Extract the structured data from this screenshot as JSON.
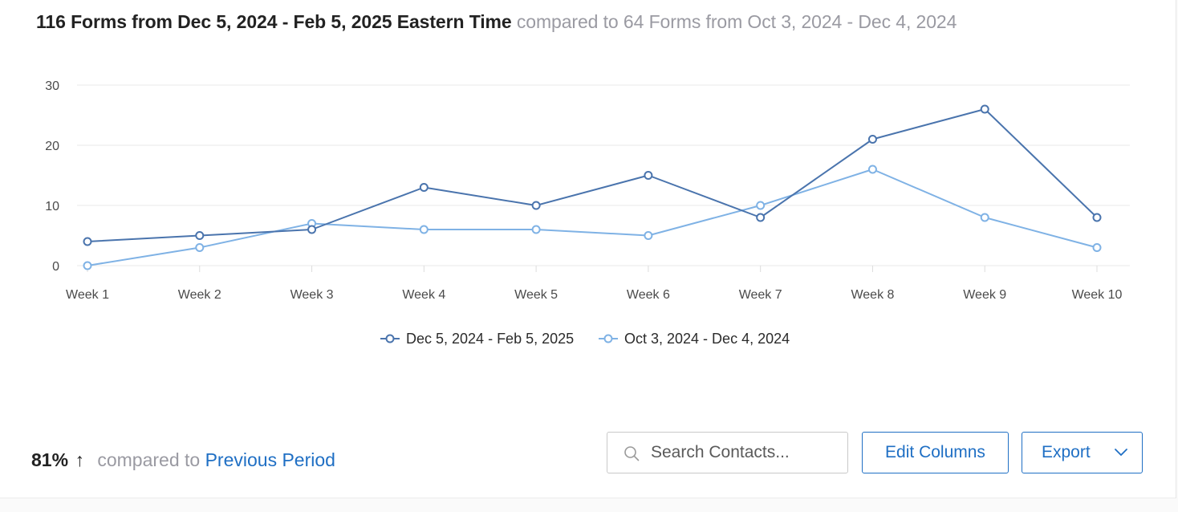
{
  "header": {
    "primary": "116 Forms from Dec 5, 2024 - Feb 5, 2025 Eastern Time",
    "secondary": "compared to 64 Forms from Oct 3, 2024 - Dec 4, 2024"
  },
  "chart_data": {
    "type": "line",
    "title": "",
    "xlabel": "",
    "ylabel": "",
    "categories": [
      "Week 1",
      "Week 2",
      "Week 3",
      "Week 4",
      "Week 5",
      "Week 6",
      "Week 7",
      "Week 8",
      "Week 9",
      "Week 10"
    ],
    "y_ticks": [
      0,
      10,
      20,
      30
    ],
    "ylim": [
      0,
      30
    ],
    "grid": true,
    "legend_position": "bottom-center",
    "series": [
      {
        "name": "Dec 5, 2024 - Feb 5, 2025",
        "color": "#4a74ad",
        "values": [
          4,
          5,
          6,
          13,
          10,
          15,
          8,
          21,
          26,
          8
        ]
      },
      {
        "name": "Oct 3, 2024 - Dec 4, 2024",
        "color": "#7fb2e5",
        "values": [
          0,
          3,
          7,
          6,
          6,
          5,
          10,
          16,
          8,
          3
        ]
      }
    ]
  },
  "comparison": {
    "percent": "81%",
    "arrow": "↑",
    "text": "compared to",
    "link": "Previous Period"
  },
  "toolbar": {
    "search_icon": "search-icon",
    "search_placeholder": "Search Contacts...",
    "search_value": "",
    "edit_columns_label": "Edit Columns",
    "export_label": "Export",
    "export_icon": "chevron-down-icon"
  }
}
